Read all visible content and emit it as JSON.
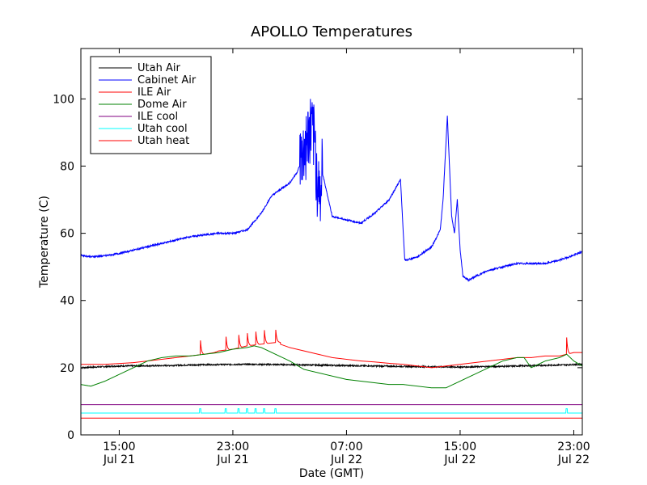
{
  "chart_data": {
    "type": "line",
    "title": "APOLLO Temperatures",
    "xlabel": "Date (GMT)",
    "ylabel": "Temperature (C)",
    "xlim_hours": [
      12.3,
      47.6
    ],
    "ylim": [
      0,
      115
    ],
    "yticks": [
      0,
      20,
      40,
      60,
      80,
      100
    ],
    "xticks": [
      {
        "hour": 15,
        "time": "15:00",
        "date": "Jul 21"
      },
      {
        "hour": 23,
        "time": "23:00",
        "date": "Jul 21"
      },
      {
        "hour": 31,
        "time": "07:00",
        "date": "Jul 22"
      },
      {
        "hour": 39,
        "time": "15:00",
        "date": "Jul 22"
      },
      {
        "hour": 47,
        "time": "23:00",
        "date": "Jul 22"
      }
    ],
    "legend_position": "top-left",
    "series": [
      {
        "name": "Utah Air",
        "color": "#000000",
        "x": [
          12.3,
          15,
          18,
          21,
          24,
          27,
          30,
          33,
          36,
          39,
          42,
          45,
          47.6
        ],
        "y": [
          20,
          20.5,
          20.6,
          20.9,
          21,
          20.9,
          20.7,
          20.5,
          20.3,
          20.2,
          20.4,
          20.7,
          21
        ]
      },
      {
        "name": "Cabinet Air",
        "color": "#0000ff",
        "x": [
          12.3,
          13,
          14,
          15,
          16,
          17,
          18,
          19,
          20,
          21,
          22,
          23,
          24,
          25,
          25.7,
          26,
          27,
          27.5,
          28,
          28.5,
          28.8,
          28.9,
          29.2,
          29.3,
          30,
          31,
          32,
          33,
          34,
          34.8,
          35.1,
          35.2,
          36,
          37,
          37.6,
          37.8,
          38.1,
          38.4,
          38.6,
          38.8,
          39,
          39.2,
          39.3,
          39.6,
          40,
          41,
          42,
          43,
          44,
          45,
          46,
          47,
          47.6
        ],
        "y": [
          53.5,
          53,
          53.3,
          54,
          55,
          56,
          57,
          58,
          59,
          59.5,
          60,
          60,
          61,
          66,
          71,
          72,
          75,
          78,
          83,
          90,
          85,
          75,
          71,
          78,
          65,
          64,
          63,
          66,
          70,
          76,
          52,
          52,
          53,
          56,
          61,
          70,
          95,
          65,
          60,
          70,
          55,
          47,
          47,
          46,
          47,
          49,
          50,
          51,
          51,
          51,
          52,
          53.5,
          54.5
        ]
      },
      {
        "name": "ILE Air",
        "color": "#ff0000",
        "x": [
          12.3,
          14,
          16,
          18,
          20,
          21,
          21.7,
          22,
          23,
          24,
          25,
          26,
          27,
          28,
          29,
          30,
          31,
          32,
          33,
          34,
          35,
          36,
          37,
          38,
          39,
          40,
          41,
          42,
          43,
          44,
          45,
          46,
          46.5,
          47,
          47.6
        ],
        "y": [
          21,
          21,
          21.5,
          22.5,
          23.5,
          24,
          24.5,
          25,
          25.5,
          26.5,
          27,
          27.5,
          26,
          25,
          24,
          23,
          22.5,
          22,
          21.7,
          21.3,
          21,
          20.5,
          20,
          20.5,
          21,
          21.5,
          22,
          22.5,
          23,
          23,
          23.5,
          23.5,
          24,
          24.5,
          24.5
        ]
      },
      {
        "name": "Dome Air",
        "color": "#008000",
        "x": [
          12.3,
          13,
          14,
          15,
          16,
          17,
          18,
          19,
          20,
          21,
          22,
          23,
          24,
          24.5,
          25,
          26,
          27,
          28,
          29,
          30,
          31,
          32,
          33,
          34,
          35,
          36,
          37,
          38,
          39,
          40,
          41,
          42,
          43,
          43.5,
          44,
          45,
          46,
          46.5,
          47,
          47.6
        ],
        "y": [
          15,
          14.5,
          16,
          18,
          20,
          22,
          23,
          23.5,
          23.5,
          24,
          24.5,
          25.5,
          26,
          26.5,
          26,
          24,
          22,
          19.5,
          18.5,
          17.5,
          16.5,
          16,
          15.5,
          15,
          15,
          14.5,
          14,
          14,
          16,
          18,
          20,
          22,
          23,
          23,
          20,
          22,
          23,
          24,
          22,
          20.5
        ]
      },
      {
        "name": "ILE cool",
        "color": "#800080",
        "x": [
          12.3,
          47.6
        ],
        "y": [
          9,
          9
        ]
      },
      {
        "name": "Utah cool",
        "color": "#00ffff",
        "x": [
          12.3,
          47.6
        ],
        "y": [
          6.5,
          6.5
        ]
      },
      {
        "name": "Utah heat",
        "color": "#ff0000",
        "x": [
          12.3,
          47.6
        ],
        "y": [
          5,
          5
        ]
      }
    ],
    "ile_air_spikes": [
      {
        "hour": 20.7,
        "peak": 29.5
      },
      {
        "hour": 22.5,
        "peak": 30.5
      },
      {
        "hour": 23.4,
        "peak": 31
      },
      {
        "hour": 24.0,
        "peak": 31.5
      },
      {
        "hour": 24.6,
        "peak": 32
      },
      {
        "hour": 25.2,
        "peak": 32.5
      },
      {
        "hour": 26.0,
        "peak": 32.5
      },
      {
        "hour": 46.5,
        "peak": 29
      }
    ],
    "utah_cool_spikes": [
      20.7,
      22.5,
      23.4,
      24.0,
      24.6,
      25.2,
      26.0,
      46.5
    ],
    "cabinet_noise_region": [
      27.7,
      29.3
    ]
  }
}
